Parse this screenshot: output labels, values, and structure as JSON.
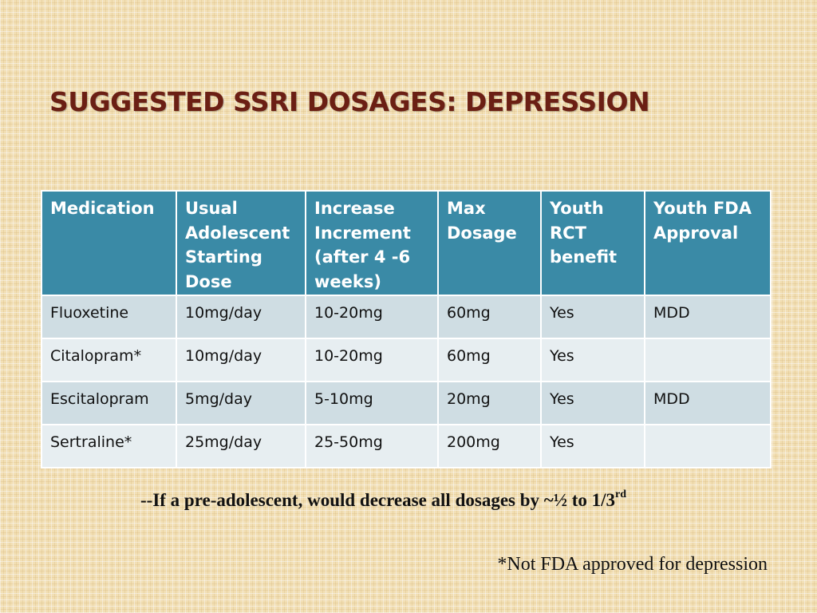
{
  "slide": {
    "title": "SUGGESTED SSRI DOSAGES: DEPRESSION"
  },
  "table": {
    "headers": [
      "Medication",
      "Usual Adolescent Starting Dose",
      "Increase Increment (after 4 -6 weeks)",
      "Max Dosage",
      "Youth RCT benefit",
      "Youth FDA Approval"
    ],
    "rows": [
      [
        "Fluoxetine",
        "10mg/day",
        "10-20mg",
        "60mg",
        "Yes",
        "MDD"
      ],
      [
        "Citalopram*",
        "10mg/day",
        "10-20mg",
        "60mg",
        "Yes",
        ""
      ],
      [
        "Escitalopram",
        "5mg/day",
        "5-10mg",
        "20mg",
        "Yes",
        "MDD"
      ],
      [
        "Sertraline*",
        "25mg/day",
        "25-50mg",
        "200mg",
        "Yes",
        ""
      ]
    ]
  },
  "notes": {
    "preadolescent": "--If  a pre-adolescent, would decrease all dosages by ~½ to 1/3",
    "preadolescent_sup": "rd",
    "not_fda": "*Not FDA approved for depression"
  },
  "colors": {
    "title": "#6b1f14",
    "header_bg": "#3a8aa6",
    "row_odd": "#cfdde3",
    "row_even": "#e7eef1",
    "background": "#f2dfb4"
  }
}
